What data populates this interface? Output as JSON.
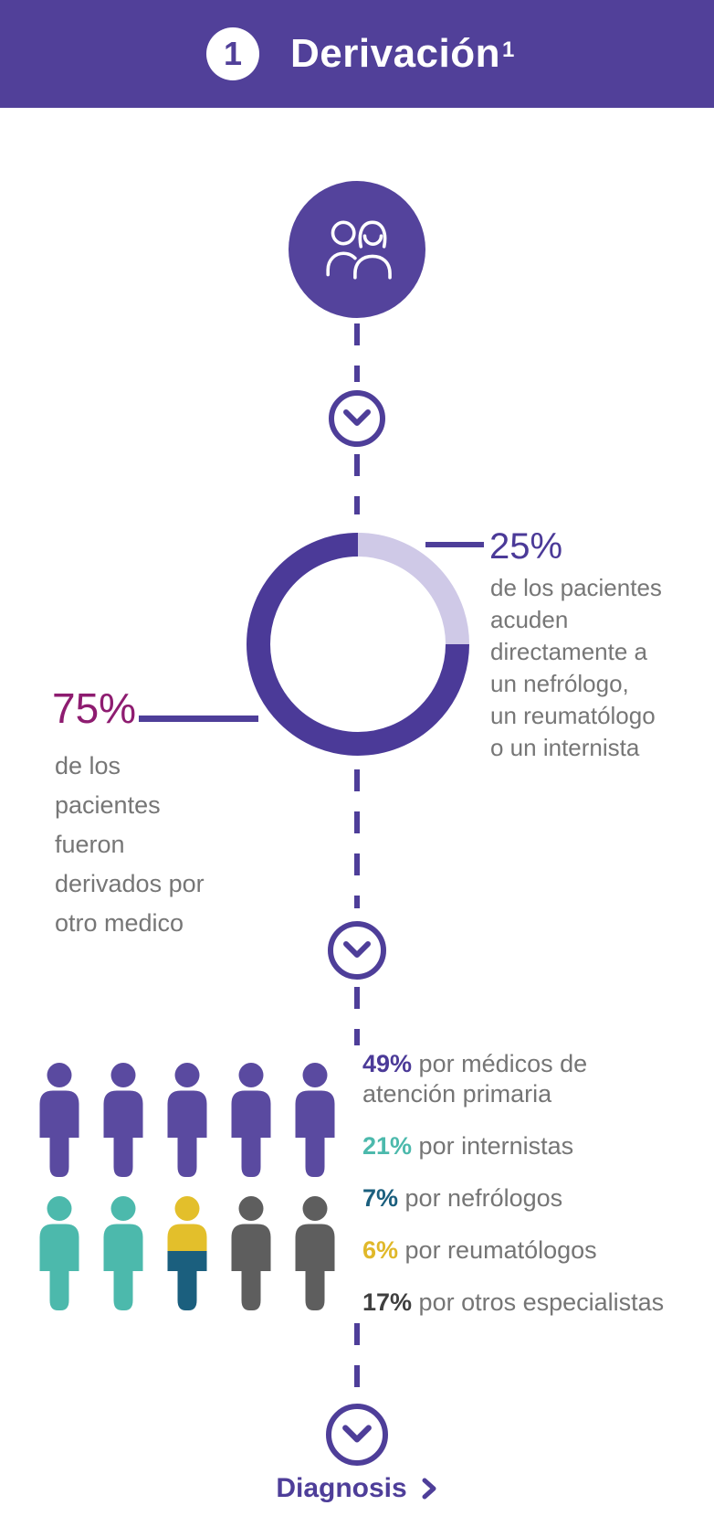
{
  "header": {
    "step_number": "1",
    "title": "Derivación",
    "title_superscript": "1"
  },
  "accent_colors": {
    "purple": "#514099",
    "purple_dark": "#4b3a98",
    "lavender": "#cfc9e7",
    "magenta": "#8e1c70",
    "teal": "#4cb9ac",
    "petrol": "#1b5f7e",
    "yellow": "#e3bf2b",
    "gray": "#5e5e5e",
    "text_gray": "#767676"
  },
  "donut_section": {
    "pct25_value": "25%",
    "pct25_desc": "de los pacientes\nacuden\ndirectamente a\nun nefrólogo,\nun reumatólogo\no un internista",
    "pct75_value": "75%",
    "pct75_desc": "de los\npacientes\nfueron\nderivados por\notro medico"
  },
  "legend": [
    {
      "pct": "49%",
      "label": "por médicos de\natención primaria",
      "color": "#4b3a98"
    },
    {
      "pct": "21%",
      "label": "por internistas",
      "color": "#4cb9ac"
    },
    {
      "pct": "7%",
      "label": "por nefrólogos",
      "color": "#1b5f7e"
    },
    {
      "pct": "6%",
      "label": "por reumatólogos",
      "color": "#e0b82a"
    },
    {
      "pct": "17%",
      "label": "por otros especialistas",
      "color": "#3f3f3f"
    }
  ],
  "people_grid": {
    "rows": [
      [
        "purple",
        "purple",
        "purple",
        "purple",
        "purple"
      ],
      [
        "teal",
        "teal",
        "split-yellow-petrol",
        "gray",
        "gray"
      ]
    ],
    "colors": {
      "purple": "#5a4aa0",
      "teal": "#4cb9ac",
      "yellow": "#e3bf2b",
      "petrol": "#1b5f7e",
      "gray": "#5e5e5e"
    }
  },
  "footer": {
    "next_step_label": "Diagnosis"
  },
  "chart_data": [
    {
      "type": "pie",
      "title": "Derivación",
      "donut": true,
      "start_angle_deg": -90,
      "direction": "clockwise",
      "slices": [
        {
          "label": "de los pacientes acuden directamente a un nefrólogo, un reumatólogo o un internista",
          "value": 25,
          "color": "#cfc9e7"
        },
        {
          "label": "de los pacientes fueron derivados por otro medico",
          "value": 75,
          "color": "#4b3a98"
        }
      ]
    },
    {
      "type": "pictogram",
      "title": "Derivados por",
      "categories": [
        "médicos de atención primaria",
        "internistas",
        "nefrólogos",
        "reumatólogos",
        "otros especialistas"
      ],
      "values": [
        49,
        21,
        7,
        6,
        17
      ],
      "colors": [
        "#4b3a98",
        "#4cb9ac",
        "#1b5f7e",
        "#e3bf2b",
        "#3f3f3f"
      ]
    }
  ]
}
